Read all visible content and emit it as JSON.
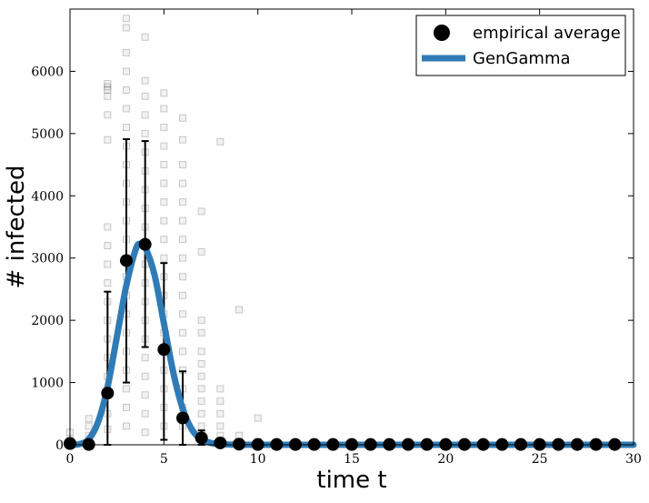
{
  "chart_data": {
    "type": "scatter",
    "xlabel": "time t",
    "ylabel": "# infected",
    "xlim": [
      0,
      30
    ],
    "ylim": [
      0,
      7000
    ],
    "xticks": [
      0,
      5,
      10,
      15,
      20,
      25,
      30
    ],
    "yticks": [
      0,
      1000,
      2000,
      3000,
      4000,
      5000,
      6000
    ],
    "grid": false,
    "legend_position": "top-right",
    "colors": {
      "average": "#000000",
      "fit": "#2f7bb6",
      "samples": "#bbbbbb"
    },
    "series": [
      {
        "name": "empirical average",
        "marker": "circle",
        "x": [
          0,
          1,
          2,
          3,
          4,
          5,
          6,
          7,
          8,
          9,
          10,
          11,
          12,
          13,
          14,
          15,
          16,
          17,
          18,
          19,
          20,
          21,
          22,
          23,
          24,
          25,
          26,
          27,
          28,
          29
        ],
        "values": [
          20,
          5,
          830,
          2960,
          3220,
          1530,
          430,
          110,
          30,
          10,
          5,
          5,
          5,
          5,
          5,
          5,
          5,
          5,
          5,
          5,
          5,
          5,
          5,
          5,
          5,
          5,
          5,
          5,
          5,
          5
        ],
        "error_low": [
          0,
          0,
          0,
          1000,
          1570,
          80,
          0,
          0,
          0,
          0,
          0,
          0,
          0,
          0,
          0,
          0,
          0,
          0,
          0,
          0,
          0,
          0,
          0,
          0,
          0,
          0,
          0,
          0,
          0,
          0
        ],
        "error_high": [
          0,
          0,
          2460,
          4910,
          4880,
          2920,
          1180,
          230,
          60,
          20,
          0,
          0,
          0,
          0,
          0,
          0,
          0,
          0,
          0,
          0,
          0,
          0,
          0,
          0,
          0,
          0,
          0,
          0,
          0,
          0
        ]
      },
      {
        "name": "GenGamma",
        "type": "line",
        "x": [
          0,
          0.5,
          1,
          1.5,
          2,
          2.5,
          3,
          3.5,
          3.75,
          4,
          4.5,
          5,
          5.5,
          6,
          6.5,
          7,
          7.5,
          8,
          9,
          10,
          12,
          15,
          20,
          25,
          30
        ],
        "values": [
          0,
          10,
          90,
          370,
          930,
          1740,
          2560,
          3140,
          3230,
          3180,
          2730,
          1950,
          1160,
          580,
          240,
          90,
          30,
          10,
          0,
          0,
          0,
          0,
          0,
          0,
          0
        ]
      }
    ],
    "samples": {
      "marker": "square",
      "points": [
        [
          0,
          0
        ],
        [
          0,
          80
        ],
        [
          0,
          200
        ],
        [
          1,
          60
        ],
        [
          1,
          150
        ],
        [
          1,
          300
        ],
        [
          1,
          420
        ],
        [
          2,
          3500
        ],
        [
          2,
          3200
        ],
        [
          2,
          2900
        ],
        [
          2,
          2600
        ],
        [
          2,
          2300
        ],
        [
          2,
          2000
        ],
        [
          2,
          1700
        ],
        [
          2,
          1400
        ],
        [
          2,
          1100
        ],
        [
          2,
          800
        ],
        [
          2,
          500
        ],
        [
          2,
          250
        ],
        [
          2,
          5600
        ],
        [
          2,
          5700
        ],
        [
          2,
          5750
        ],
        [
          2,
          5800
        ],
        [
          2,
          5300
        ],
        [
          2,
          4900
        ],
        [
          3,
          6850
        ],
        [
          3,
          6700
        ],
        [
          3,
          6300
        ],
        [
          3,
          6000
        ],
        [
          3,
          5700
        ],
        [
          3,
          5400
        ],
        [
          3,
          5100
        ],
        [
          3,
          4800
        ],
        [
          3,
          4500
        ],
        [
          3,
          4200
        ],
        [
          3,
          3900
        ],
        [
          3,
          3600
        ],
        [
          3,
          3300
        ],
        [
          3,
          3000
        ],
        [
          3,
          2700
        ],
        [
          3,
          2400
        ],
        [
          3,
          2100
        ],
        [
          3,
          1800
        ],
        [
          3,
          1500
        ],
        [
          3,
          1200
        ],
        [
          3,
          900
        ],
        [
          3,
          600
        ],
        [
          3,
          300
        ],
        [
          4,
          6550
        ],
        [
          4,
          5850
        ],
        [
          4,
          5600
        ],
        [
          4,
          5300
        ],
        [
          4,
          5000
        ],
        [
          4,
          4700
        ],
        [
          4,
          4400
        ],
        [
          4,
          4100
        ],
        [
          4,
          3800
        ],
        [
          4,
          3500
        ],
        [
          4,
          3200
        ],
        [
          4,
          2900
        ],
        [
          4,
          2600
        ],
        [
          4,
          2300
        ],
        [
          4,
          2000
        ],
        [
          4,
          1700
        ],
        [
          4,
          1400
        ],
        [
          4,
          1100
        ],
        [
          4,
          800
        ],
        [
          4,
          500
        ],
        [
          4,
          200
        ],
        [
          5,
          5650
        ],
        [
          5,
          5400
        ],
        [
          5,
          5100
        ],
        [
          5,
          4800
        ],
        [
          5,
          4500
        ],
        [
          5,
          4200
        ],
        [
          5,
          3900
        ],
        [
          5,
          3600
        ],
        [
          5,
          3300
        ],
        [
          5,
          3000
        ],
        [
          5,
          2700
        ],
        [
          5,
          2400
        ],
        [
          5,
          2100
        ],
        [
          5,
          1800
        ],
        [
          5,
          1500
        ],
        [
          5,
          1200
        ],
        [
          5,
          900
        ],
        [
          5,
          600
        ],
        [
          5,
          300
        ],
        [
          6,
          5250
        ],
        [
          6,
          4900
        ],
        [
          6,
          4500
        ],
        [
          6,
          4200
        ],
        [
          6,
          3900
        ],
        [
          6,
          3600
        ],
        [
          6,
          3300
        ],
        [
          6,
          3000
        ],
        [
          6,
          2700
        ],
        [
          6,
          2400
        ],
        [
          6,
          2100
        ],
        [
          6,
          1800
        ],
        [
          6,
          1500
        ],
        [
          6,
          1200
        ],
        [
          6,
          900
        ],
        [
          6,
          600
        ],
        [
          6,
          300
        ],
        [
          7,
          3750
        ],
        [
          7,
          3100
        ],
        [
          7,
          2000
        ],
        [
          7,
          1800
        ],
        [
          7,
          1500
        ],
        [
          7,
          1300
        ],
        [
          7,
          1100
        ],
        [
          7,
          900
        ],
        [
          7,
          700
        ],
        [
          7,
          500
        ],
        [
          7,
          300
        ],
        [
          7,
          150
        ],
        [
          8,
          4870
        ],
        [
          8,
          900
        ],
        [
          8,
          700
        ],
        [
          8,
          500
        ],
        [
          8,
          300
        ],
        [
          8,
          150
        ],
        [
          9,
          2170
        ],
        [
          9,
          150
        ],
        [
          9,
          50
        ],
        [
          10,
          430
        ],
        [
          10,
          50
        ]
      ]
    }
  }
}
